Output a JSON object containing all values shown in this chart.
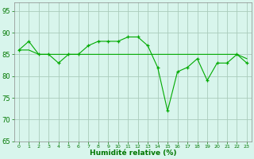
{
  "x": [
    0,
    1,
    2,
    3,
    4,
    5,
    6,
    7,
    8,
    9,
    10,
    11,
    12,
    13,
    14,
    15,
    16,
    17,
    18,
    19,
    20,
    21,
    22,
    23
  ],
  "y_main": [
    86,
    88,
    85,
    85,
    83,
    85,
    85,
    87,
    88,
    88,
    88,
    89,
    89,
    87,
    82,
    72,
    81,
    82,
    84,
    79,
    83,
    83,
    85,
    83
  ],
  "y_ref": [
    86,
    86,
    85,
    85,
    85,
    85,
    85,
    85,
    85,
    85,
    85,
    85,
    85,
    85,
    85,
    85,
    85,
    85,
    85,
    85,
    85,
    85,
    85,
    84
  ],
  "line_color": "#00AA00",
  "bg_color": "#D8F5EC",
  "grid_color": "#AACCBB",
  "xlabel": "Humidité relative (%)",
  "ylim": [
    65,
    97
  ],
  "yticks": [
    65,
    70,
    75,
    80,
    85,
    90,
    95
  ],
  "xlim": [
    -0.5,
    23.5
  ],
  "xlabel_color": "#007700",
  "tick_color": "#007700",
  "spine_color": "#888888"
}
